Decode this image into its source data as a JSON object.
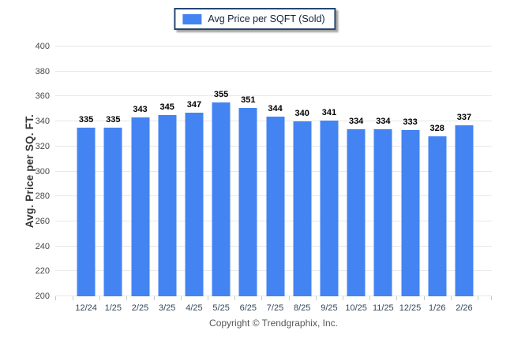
{
  "legend": {
    "label": "Avg Price per SQFT (Sold)"
  },
  "chart_data": {
    "type": "bar",
    "title": "",
    "series_name": "Avg Price per SQFT (Sold)",
    "categories": [
      "12/24",
      "1/25",
      "2/25",
      "3/25",
      "4/25",
      "5/25",
      "6/25",
      "7/25",
      "8/25",
      "9/25",
      "10/25",
      "11/25",
      "12/25",
      "1/26",
      "2/26"
    ],
    "values": [
      335,
      335,
      343,
      345,
      347,
      355,
      351,
      344,
      340,
      341,
      334,
      334,
      333,
      328,
      337
    ],
    "xlabel": "",
    "ylabel": "Avg. Price per SQ. FT.",
    "ylim": [
      200,
      400
    ],
    "y_ticks": [
      200,
      220,
      240,
      260,
      280,
      300,
      320,
      340,
      360,
      380,
      400
    ],
    "grid": true,
    "legend_position": "top",
    "bar_color": "#4384f2",
    "value_labels": true
  },
  "footer": {
    "copyright": "Copyright © Trendgraphix, Inc."
  }
}
